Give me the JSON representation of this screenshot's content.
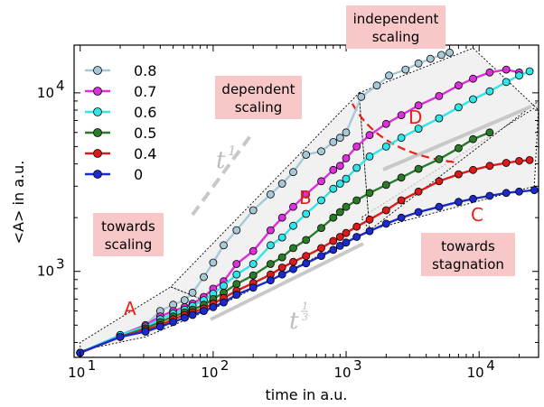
{
  "chart_data": {
    "type": "line",
    "xlabel": "time in a.u.",
    "ylabel": "<A> in a.u.",
    "xscale": "log",
    "yscale": "log",
    "xlim": [
      9,
      28000
    ],
    "ylim": [
      330,
      18500
    ],
    "xticks": [
      {
        "value": 10,
        "base": "10",
        "exp": "1"
      },
      {
        "value": 100,
        "base": "10",
        "exp": "2"
      },
      {
        "value": 1000,
        "base": "10",
        "exp": "3"
      },
      {
        "value": 10000,
        "base": "10",
        "exp": "4"
      }
    ],
    "yticks": [
      {
        "value": 1000,
        "base": "10",
        "exp": "3"
      },
      {
        "value": 10000,
        "base": "10",
        "exp": "4"
      }
    ],
    "legend_position": "top-left",
    "series": [
      {
        "name": "0.8",
        "color": "#a8c8d8",
        "points": [
          [
            10,
            350
          ],
          [
            20,
            440
          ],
          [
            31,
            500
          ],
          [
            40,
            600
          ],
          [
            50,
            650
          ],
          [
            61,
            690
          ],
          [
            70,
            760
          ],
          [
            85,
            930
          ],
          [
            100,
            1120
          ],
          [
            120,
            1400
          ],
          [
            150,
            1700
          ],
          [
            200,
            2200
          ],
          [
            270,
            2700
          ],
          [
            330,
            3100
          ],
          [
            400,
            3600
          ],
          [
            500,
            4500
          ],
          [
            650,
            4700
          ],
          [
            800,
            5300
          ],
          [
            900,
            5600
          ],
          [
            1000,
            6000
          ],
          [
            1300,
            9500
          ],
          [
            1700,
            11000
          ],
          [
            2100,
            12500
          ],
          [
            2800,
            13500
          ],
          [
            3500,
            14600
          ],
          [
            4300,
            15500
          ],
          [
            5200,
            16300
          ],
          [
            6000,
            16800
          ]
        ]
      },
      {
        "name": "0.7",
        "color": "#dd30dd",
        "points": [
          [
            10,
            350
          ],
          [
            20,
            440
          ],
          [
            31,
            500
          ],
          [
            40,
            560
          ],
          [
            50,
            600
          ],
          [
            61,
            630
          ],
          [
            70,
            660
          ],
          [
            85,
            720
          ],
          [
            100,
            800
          ],
          [
            120,
            880
          ],
          [
            150,
            1100
          ],
          [
            200,
            1300
          ],
          [
            270,
            1700
          ],
          [
            330,
            2000
          ],
          [
            400,
            2300
          ],
          [
            500,
            2700
          ],
          [
            650,
            3200
          ],
          [
            800,
            3700
          ],
          [
            900,
            3900
          ],
          [
            1000,
            4300
          ],
          [
            1200,
            5000
          ],
          [
            1500,
            5800
          ],
          [
            2000,
            6700
          ],
          [
            2600,
            7500
          ],
          [
            3500,
            8500
          ],
          [
            5000,
            9600
          ],
          [
            7000,
            11000
          ],
          [
            9000,
            12000
          ],
          [
            12000,
            13000
          ],
          [
            16000,
            13500
          ],
          [
            20000,
            13000
          ]
        ]
      },
      {
        "name": "0.6",
        "color": "#30e5e8",
        "points": [
          [
            10,
            350
          ],
          [
            20,
            440
          ],
          [
            31,
            490
          ],
          [
            40,
            540
          ],
          [
            50,
            580
          ],
          [
            61,
            610
          ],
          [
            70,
            640
          ],
          [
            85,
            690
          ],
          [
            100,
            750
          ],
          [
            120,
            830
          ],
          [
            150,
            960
          ],
          [
            200,
            1100
          ],
          [
            270,
            1400
          ],
          [
            330,
            1550
          ],
          [
            400,
            1800
          ],
          [
            500,
            2100
          ],
          [
            650,
            2500
          ],
          [
            800,
            2900
          ],
          [
            900,
            3100
          ],
          [
            1000,
            3300
          ],
          [
            1200,
            3800
          ],
          [
            1500,
            4400
          ],
          [
            2000,
            5000
          ],
          [
            2600,
            5600
          ],
          [
            3500,
            6300
          ],
          [
            5000,
            7200
          ],
          [
            7000,
            8300
          ],
          [
            9000,
            9200
          ],
          [
            12000,
            10200
          ],
          [
            16000,
            11500
          ],
          [
            20000,
            12500
          ],
          [
            24000,
            13200
          ]
        ]
      },
      {
        "name": "0.5",
        "color": "#2a7c2a",
        "points": [
          [
            10,
            350
          ],
          [
            20,
            430
          ],
          [
            31,
            480
          ],
          [
            40,
            520
          ],
          [
            50,
            560
          ],
          [
            61,
            590
          ],
          [
            70,
            610
          ],
          [
            85,
            650
          ],
          [
            100,
            700
          ],
          [
            120,
            760
          ],
          [
            150,
            850
          ],
          [
            200,
            950
          ],
          [
            270,
            1100
          ],
          [
            330,
            1200
          ],
          [
            400,
            1350
          ],
          [
            500,
            1500
          ],
          [
            650,
            1750
          ],
          [
            800,
            2000
          ],
          [
            900,
            2150
          ],
          [
            1000,
            2300
          ],
          [
            1200,
            2500
          ],
          [
            1500,
            2750
          ],
          [
            2000,
            3050
          ],
          [
            2600,
            3350
          ],
          [
            3500,
            3750
          ],
          [
            5000,
            4250
          ],
          [
            7000,
            4900
          ],
          [
            9000,
            5500
          ],
          [
            12000,
            6000
          ]
        ]
      },
      {
        "name": "0.4",
        "color": "#dd1a1a",
        "points": [
          [
            10,
            350
          ],
          [
            20,
            430
          ],
          [
            31,
            470
          ],
          [
            40,
            500
          ],
          [
            50,
            540
          ],
          [
            61,
            570
          ],
          [
            70,
            590
          ],
          [
            85,
            620
          ],
          [
            100,
            660
          ],
          [
            120,
            710
          ],
          [
            150,
            780
          ],
          [
            200,
            860
          ],
          [
            270,
            960
          ],
          [
            330,
            1050
          ],
          [
            400,
            1130
          ],
          [
            500,
            1220
          ],
          [
            650,
            1350
          ],
          [
            800,
            1480
          ],
          [
            900,
            1560
          ],
          [
            1000,
            1640
          ],
          [
            1200,
            1780
          ],
          [
            1500,
            1950
          ],
          [
            2000,
            2200
          ],
          [
            2600,
            2500
          ],
          [
            3500,
            2800
          ],
          [
            5000,
            3200
          ],
          [
            7000,
            3500
          ],
          [
            9000,
            3700
          ],
          [
            12000,
            3900
          ],
          [
            16000,
            4050
          ],
          [
            20000,
            4150
          ],
          [
            24000,
            4200
          ]
        ]
      },
      {
        "name": "0",
        "color": "#1a2acc",
        "points": [
          [
            10,
            350
          ],
          [
            20,
            430
          ],
          [
            31,
            460
          ],
          [
            40,
            490
          ],
          [
            50,
            520
          ],
          [
            61,
            550
          ],
          [
            70,
            570
          ],
          [
            85,
            600
          ],
          [
            100,
            630
          ],
          [
            120,
            670
          ],
          [
            150,
            740
          ],
          [
            200,
            810
          ],
          [
            270,
            890
          ],
          [
            330,
            960
          ],
          [
            400,
            1030
          ],
          [
            500,
            1110
          ],
          [
            650,
            1220
          ],
          [
            800,
            1320
          ],
          [
            900,
            1390
          ],
          [
            1000,
            1450
          ],
          [
            1200,
            1560
          ],
          [
            1500,
            1680
          ],
          [
            2000,
            1850
          ],
          [
            2600,
            2000
          ],
          [
            3500,
            2150
          ],
          [
            5000,
            2300
          ],
          [
            7000,
            2450
          ],
          [
            9000,
            2550
          ],
          [
            12000,
            2650
          ],
          [
            16000,
            2750
          ],
          [
            20000,
            2800
          ],
          [
            26000,
            2850
          ]
        ]
      }
    ],
    "regions": [
      {
        "label": "A",
        "polygon": [
          [
            10,
            360
          ],
          [
            31,
            430
          ],
          [
            110,
            640
          ],
          [
            48,
            820
          ],
          [
            10,
            400
          ]
        ]
      },
      {
        "label": "B",
        "polygon": [
          [
            48,
            820
          ],
          [
            110,
            640
          ],
          [
            1500,
            1700
          ],
          [
            1250,
            10000
          ]
        ]
      },
      {
        "label": "C",
        "polygon": [
          [
            1500,
            1700
          ],
          [
            26000,
            3000
          ],
          [
            28000,
            8500
          ],
          [
            1300,
            2000
          ]
        ]
      },
      {
        "label": "D",
        "polygon": [
          [
            1250,
            10000
          ],
          [
            9000,
            17800
          ],
          [
            28000,
            8000
          ],
          [
            28000,
            9000
          ],
          [
            1500,
            1700
          ]
        ]
      }
    ],
    "region_labels": {
      "A": "A",
      "B": "B",
      "C": "C",
      "D": "D"
    },
    "annotations": {
      "towards_scaling": [
        "towards",
        "scaling"
      ],
      "dependent_scaling": [
        "dependent",
        "scaling"
      ],
      "independent_scaling": [
        "independent",
        "scaling"
      ],
      "towards_stagnation": [
        "towards",
        "stagnation"
      ]
    },
    "guides": {
      "t1_label_base": "t",
      "t1_label_exp": "1",
      "t13_label_base": "t",
      "t13_label_num": "1",
      "t13_label_den": "3"
    }
  }
}
